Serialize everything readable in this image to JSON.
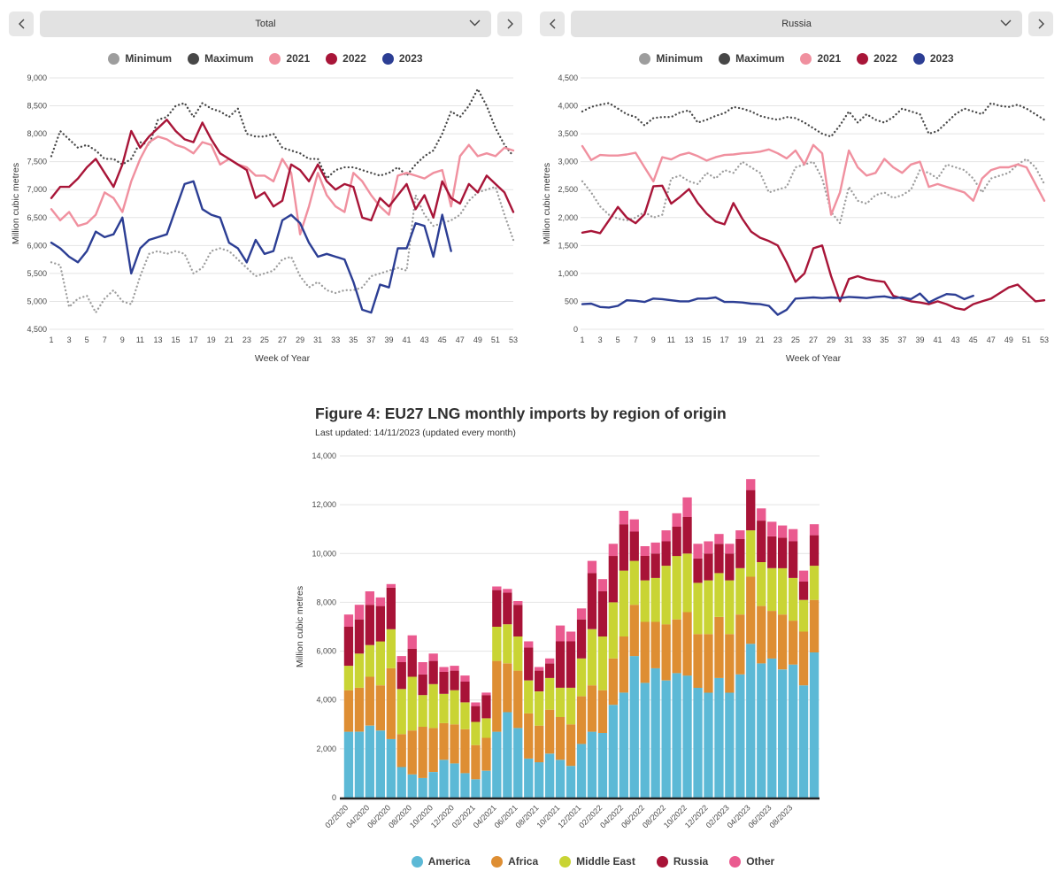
{
  "colors": {
    "minimum": "#9d9d9d",
    "maximum": "#474747",
    "y2021": "#f0909f",
    "y2022": "#a81538",
    "y2023": "#2c3e94",
    "america": "#5cb9d6",
    "africa": "#de8e33",
    "middle_east": "#c9d434",
    "russia": "#a81337",
    "other": "#ea5a8f",
    "grid": "#e4e4e4",
    "axis_line": "#222222"
  },
  "panels": [
    {
      "selector_value": "Total"
    },
    {
      "selector_value": "Russia"
    }
  ],
  "figure": {
    "title": "Figure 4: EU27 LNG monthly imports by region of origin",
    "subtitle": "Last updated: 14/11/2023 (updated every month)"
  },
  "chart_data": [
    {
      "type": "line",
      "selector": "Total",
      "xlabel": "Week of Year",
      "ylabel": "Million cubic metres",
      "ylim": [
        4500,
        9000
      ],
      "ytick": 500,
      "xmax": 53,
      "grid": true,
      "legend": [
        {
          "label": "Minimum",
          "color": "minimum"
        },
        {
          "label": "Maximum",
          "color": "maximum"
        },
        {
          "label": "2021",
          "color": "y2021"
        },
        {
          "label": "2022",
          "color": "y2022"
        },
        {
          "label": "2023",
          "color": "y2023"
        }
      ],
      "series": [
        {
          "name": "Minimum",
          "color": "minimum",
          "style": "dotted",
          "values": [
            5700,
            5650,
            4900,
            5050,
            5100,
            4800,
            5050,
            5200,
            5000,
            4950,
            5450,
            5850,
            5900,
            5850,
            5900,
            5850,
            5500,
            5600,
            5900,
            5950,
            5900,
            5750,
            5600,
            5450,
            5500,
            5550,
            5750,
            5800,
            5450,
            5250,
            5350,
            5200,
            5150,
            5200,
            5200,
            5250,
            5450,
            5500,
            5550,
            5600,
            5550,
            6900,
            6550,
            6350,
            6400,
            6450,
            6550,
            6800,
            6950,
            7000,
            7050,
            6550,
            6100
          ]
        },
        {
          "name": "Maximum",
          "color": "maximum",
          "style": "dotted",
          "values": [
            7600,
            8050,
            7900,
            7750,
            7800,
            7700,
            7550,
            7550,
            7450,
            7550,
            7850,
            7800,
            8250,
            8300,
            8500,
            8550,
            8300,
            8550,
            8450,
            8400,
            8300,
            8450,
            8000,
            7950,
            7950,
            8000,
            7750,
            7700,
            7650,
            7550,
            7550,
            7200,
            7350,
            7400,
            7400,
            7350,
            7300,
            7250,
            7300,
            7400,
            7250,
            7450,
            7600,
            7700,
            8000,
            8400,
            8300,
            8500,
            8800,
            8500,
            8100,
            7800,
            7600
          ]
        },
        {
          "name": "2021",
          "color": "y2021",
          "style": "solid",
          "values": [
            6650,
            6450,
            6600,
            6350,
            6400,
            6550,
            6950,
            6850,
            6600,
            7150,
            7550,
            7850,
            7950,
            7900,
            7800,
            7750,
            7650,
            7850,
            7800,
            7450,
            7550,
            7450,
            7400,
            7250,
            7250,
            7150,
            7550,
            7300,
            6200,
            6700,
            7300,
            6900,
            6700,
            6600,
            7300,
            7150,
            6900,
            6700,
            6550,
            7250,
            7300,
            7250,
            7200,
            7300,
            7350,
            6700,
            7600,
            7800,
            7600,
            7650,
            7600,
            7750,
            7700
          ]
        },
        {
          "name": "2022",
          "color": "y2022",
          "style": "solid",
          "values": [
            6850,
            7050,
            7050,
            7200,
            7400,
            7550,
            7300,
            7050,
            7450,
            8050,
            7750,
            7950,
            8100,
            8250,
            8050,
            7900,
            7850,
            8200,
            7900,
            7650,
            7550,
            7450,
            7350,
            6850,
            6950,
            6700,
            6800,
            7450,
            7350,
            7150,
            7450,
            7150,
            7000,
            7100,
            7050,
            6500,
            6450,
            6850,
            6700,
            6900,
            7100,
            6650,
            6900,
            6500,
            7150,
            6850,
            6750,
            7100,
            6950,
            7250,
            7100,
            6950,
            6600
          ]
        },
        {
          "name": "2023",
          "color": "y2023",
          "style": "solid",
          "values": [
            6050,
            5950,
            5800,
            5700,
            5900,
            6250,
            6150,
            6200,
            6500,
            5500,
            5950,
            6100,
            6150,
            6200,
            6650,
            7100,
            7150,
            6650,
            6550,
            6500,
            6050,
            5950,
            5700,
            6100,
            5850,
            5900,
            6450,
            6550,
            6400,
            6050,
            5800,
            5850,
            5800,
            5750,
            5350,
            4850,
            4800,
            5300,
            5250,
            5950,
            5950,
            6400,
            6350,
            5800,
            6550,
            5900
          ]
        }
      ]
    },
    {
      "type": "line",
      "selector": "Russia",
      "xlabel": "Week of Year",
      "ylabel": "Million cubic metres",
      "ylim": [
        0,
        4500
      ],
      "ytick": 500,
      "xmax": 53,
      "grid": true,
      "legend": [
        {
          "label": "Minimum",
          "color": "minimum"
        },
        {
          "label": "Maximum",
          "color": "maximum"
        },
        {
          "label": "2021",
          "color": "y2021"
        },
        {
          "label": "2022",
          "color": "y2022"
        },
        {
          "label": "2023",
          "color": "y2023"
        }
      ],
      "series": [
        {
          "name": "Minimum",
          "color": "minimum",
          "style": "dotted",
          "values": [
            2650,
            2450,
            2200,
            2050,
            1980,
            1950,
            2000,
            2100,
            2000,
            2050,
            2700,
            2750,
            2650,
            2600,
            2800,
            2700,
            2850,
            2800,
            3000,
            2900,
            2800,
            2450,
            2500,
            2550,
            2900,
            2950,
            3000,
            2700,
            2100,
            1900,
            2550,
            2300,
            2250,
            2400,
            2450,
            2350,
            2400,
            2500,
            2850,
            2800,
            2700,
            2950,
            2900,
            2850,
            2700,
            2450,
            2700,
            2750,
            2800,
            2950,
            3050,
            2900,
            2600
          ]
        },
        {
          "name": "Maximum",
          "color": "maximum",
          "style": "dotted",
          "values": [
            3900,
            3980,
            4020,
            4050,
            3950,
            3850,
            3800,
            3650,
            3780,
            3800,
            3800,
            3880,
            3920,
            3700,
            3750,
            3820,
            3870,
            3980,
            3950,
            3900,
            3820,
            3780,
            3750,
            3800,
            3780,
            3700,
            3600,
            3500,
            3450,
            3650,
            3900,
            3700,
            3850,
            3750,
            3700,
            3800,
            3950,
            3900,
            3850,
            3500,
            3550,
            3700,
            3850,
            3950,
            3900,
            3850,
            4050,
            4000,
            3980,
            4020,
            3950,
            3850,
            3750
          ]
        },
        {
          "name": "2021",
          "color": "y2021",
          "style": "solid",
          "values": [
            3280,
            3030,
            3120,
            3110,
            3110,
            3130,
            3160,
            2900,
            2650,
            3080,
            3040,
            3120,
            3160,
            3100,
            3020,
            3080,
            3120,
            3130,
            3150,
            3160,
            3180,
            3220,
            3150,
            3060,
            3200,
            2950,
            3300,
            3150,
            2050,
            2450,
            3200,
            2900,
            2750,
            2800,
            3050,
            2900,
            2800,
            2950,
            3000,
            2550,
            2600,
            2550,
            2500,
            2450,
            2300,
            2700,
            2850,
            2900,
            2900,
            2950,
            2900,
            2600,
            2300
          ]
        },
        {
          "name": "2022",
          "color": "y2022",
          "style": "solid",
          "values": [
            1730,
            1760,
            1720,
            1950,
            2190,
            2000,
            1900,
            2060,
            2560,
            2570,
            2250,
            2370,
            2510,
            2260,
            2070,
            1930,
            1880,
            2260,
            1980,
            1750,
            1640,
            1580,
            1500,
            1200,
            850,
            1000,
            1450,
            1500,
            950,
            500,
            900,
            950,
            900,
            870,
            850,
            600,
            550,
            500,
            480,
            450,
            500,
            450,
            380,
            350,
            450,
            500,
            550,
            650,
            750,
            800,
            650,
            500,
            520
          ]
        },
        {
          "name": "2023",
          "color": "y2023",
          "style": "solid",
          "values": [
            450,
            460,
            400,
            390,
            420,
            520,
            510,
            490,
            550,
            540,
            520,
            500,
            500,
            550,
            550,
            570,
            490,
            490,
            480,
            460,
            450,
            420,
            260,
            350,
            550,
            560,
            570,
            560,
            570,
            560,
            580,
            570,
            560,
            580,
            590,
            560,
            570,
            540,
            640,
            480,
            560,
            630,
            620,
            540,
            600
          ]
        }
      ]
    },
    {
      "type": "stacked_bar",
      "xlabel": "",
      "ylabel": "Million cubic metres",
      "ylim": [
        0,
        14000
      ],
      "ytick": 2000,
      "grid": true,
      "categories": [
        "02/2020",
        "03/2020",
        "04/2020",
        "05/2020",
        "06/2020",
        "07/2020",
        "08/2020",
        "09/2020",
        "10/2020",
        "11/2020",
        "12/2020",
        "01/2021",
        "02/2021",
        "03/2021",
        "04/2021",
        "05/2021",
        "06/2021",
        "07/2021",
        "08/2021",
        "09/2021",
        "10/2021",
        "11/2021",
        "12/2021",
        "01/2022",
        "02/2022",
        "03/2022",
        "04/2022",
        "05/2022",
        "06/2022",
        "07/2022",
        "08/2022",
        "09/2022",
        "10/2022",
        "11/2022",
        "12/2022",
        "01/2023",
        "02/2023",
        "03/2023",
        "04/2023",
        "05/2023",
        "06/2023",
        "07/2023",
        "08/2023",
        "09/2023",
        "10/2023"
      ],
      "xtick_labels": [
        "02/2020",
        "04/2020",
        "06/2020",
        "08/2020",
        "10/2020",
        "12/2020",
        "02/2021",
        "04/2021",
        "06/2021",
        "08/2021",
        "10/2021",
        "12/2021",
        "02/2022",
        "04/2022",
        "06/2022",
        "08/2022",
        "10/2022",
        "12/2022",
        "02/2023",
        "04/2023",
        "06/2023",
        "08/2023"
      ],
      "legend": [
        {
          "label": "America",
          "color": "america"
        },
        {
          "label": "Africa",
          "color": "africa"
        },
        {
          "label": "Middle East",
          "color": "middle_east"
        },
        {
          "label": "Russia",
          "color": "russia"
        },
        {
          "label": "Other",
          "color": "other"
        }
      ],
      "series": [
        {
          "name": "America",
          "color": "america",
          "values": [
            2700,
            2700,
            2950,
            2750,
            2400,
            1250,
            950,
            800,
            1050,
            1550,
            1400,
            1000,
            750,
            1100,
            2700,
            3500,
            2850,
            1600,
            1450,
            1800,
            1550,
            1300,
            2200,
            2700,
            2650,
            3800,
            4300,
            5800,
            4700,
            5300,
            4800,
            5100,
            5000,
            4500,
            4300,
            4900,
            4300,
            5050,
            6300,
            5500,
            5700,
            5250,
            5450,
            4600,
            5950
          ]
        },
        {
          "name": "Africa",
          "color": "africa",
          "values": [
            1700,
            1800,
            2000,
            1850,
            2900,
            1350,
            1800,
            2100,
            1800,
            1500,
            1600,
            1800,
            1400,
            1350,
            2900,
            2000,
            2350,
            1850,
            1500,
            1800,
            1750,
            1700,
            1950,
            1900,
            1750,
            1900,
            2300,
            2100,
            2500,
            1900,
            2300,
            2200,
            2600,
            2200,
            2400,
            2500,
            2400,
            2450,
            2750,
            2350,
            1950,
            2250,
            1800,
            2200,
            2150
          ]
        },
        {
          "name": "Middle East",
          "color": "middle_east",
          "values": [
            1000,
            1400,
            1300,
            1800,
            1600,
            1850,
            2200,
            1300,
            1800,
            1200,
            1400,
            1100,
            950,
            800,
            1400,
            1600,
            1400,
            1350,
            1400,
            1300,
            1200,
            1500,
            1550,
            2300,
            2200,
            2300,
            2700,
            1800,
            1700,
            1800,
            2400,
            2600,
            2400,
            2100,
            2200,
            1800,
            2200,
            1900,
            1900,
            1800,
            1750,
            1900,
            1750,
            1300,
            1400
          ]
        },
        {
          "name": "Russia",
          "color": "russia",
          "values": [
            1600,
            1400,
            1650,
            1450,
            1700,
            1100,
            1150,
            850,
            950,
            900,
            800,
            850,
            650,
            950,
            1500,
            1300,
            1300,
            1350,
            850,
            600,
            1900,
            1900,
            1600,
            2300,
            1850,
            1900,
            1900,
            1200,
            1000,
            1000,
            1000,
            1200,
            1500,
            1000,
            1100,
            1200,
            1100,
            1200,
            1650,
            1700,
            1300,
            1250,
            1500,
            750,
            1250
          ]
        },
        {
          "name": "Other",
          "color": "other",
          "values": [
            500,
            600,
            550,
            350,
            150,
            250,
            550,
            500,
            300,
            200,
            200,
            250,
            150,
            100,
            150,
            150,
            150,
            250,
            150,
            200,
            650,
            400,
            450,
            500,
            500,
            500,
            550,
            500,
            400,
            450,
            450,
            550,
            800,
            600,
            500,
            400,
            400,
            350,
            450,
            500,
            600,
            500,
            500,
            450,
            450
          ]
        }
      ]
    }
  ]
}
